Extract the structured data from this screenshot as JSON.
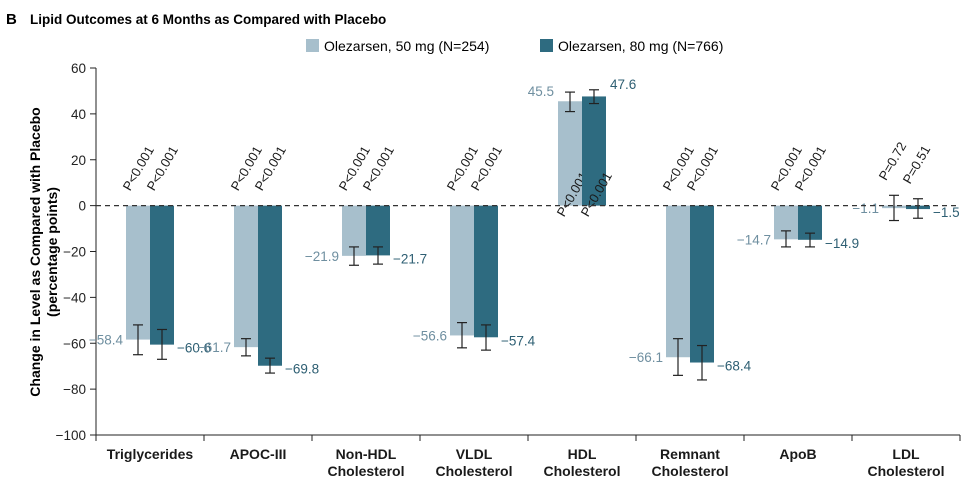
{
  "panel_letter": "B",
  "chart_data": {
    "type": "bar",
    "title": "Lipid Outcomes at 6 Months as Compared with Placebo",
    "ylabel_line1": "Change in Level as Compared with Placebo",
    "ylabel_line2": "(percentage points)",
    "xlabel": "",
    "ylim": [
      -100,
      60
    ],
    "yticks": [
      60,
      40,
      20,
      0,
      -20,
      -40,
      -60,
      -80,
      -100
    ],
    "ytick_labels": [
      "60",
      "40",
      "20",
      "0",
      "−20",
      "−40",
      "−60",
      "−80",
      "−100"
    ],
    "categories": [
      [
        "Triglycerides"
      ],
      [
        "APOC-III"
      ],
      [
        "Non-HDL",
        "Cholesterol"
      ],
      [
        "VLDL",
        "Cholesterol"
      ],
      [
        "HDL",
        "Cholesterol"
      ],
      [
        "Remnant",
        "Cholesterol"
      ],
      [
        "ApoB"
      ],
      [
        "LDL",
        "Cholesterol"
      ]
    ],
    "series": [
      {
        "name": "Olezarsen, 50 mg (N=254)",
        "color": "#a7bfcc",
        "label_color": "#6f8fa0",
        "values": [
          -58.4,
          -61.7,
          -21.9,
          -56.6,
          45.5,
          -66.1,
          -14.7,
          -1.1
        ],
        "value_labels": [
          "−58.4",
          "−61.7",
          "−21.9",
          "−56.6",
          "45.5",
          "−66.1",
          "−14.7",
          "−1.1"
        ],
        "ci": [
          [
            -65.0,
            -52.0
          ],
          [
            -65.5,
            -58.0
          ],
          [
            -26.0,
            -18.0
          ],
          [
            -62.0,
            -51.0
          ],
          [
            41.0,
            49.5
          ],
          [
            -74.0,
            -58.0
          ],
          [
            -18.0,
            -11.0
          ],
          [
            -6.5,
            4.5
          ]
        ],
        "p_values": [
          "P<0.001",
          "P<0.001",
          "P<0.001",
          "P<0.001",
          "P<0.001",
          "P<0.001",
          "P<0.001",
          "P=0.72"
        ]
      },
      {
        "name": "Olezarsen, 80 mg (N=766)",
        "color": "#2e6b80",
        "label_color": "#2e5f73",
        "values": [
          -60.6,
          -69.8,
          -21.7,
          -57.4,
          47.6,
          -68.4,
          -14.9,
          -1.5
        ],
        "value_labels": [
          "−60.6",
          "−69.8",
          "−21.7",
          "−57.4",
          "47.6",
          "−68.4",
          "−14.9",
          "−1.5"
        ],
        "ci": [
          [
            -67.0,
            -54.0
          ],
          [
            -73.0,
            -66.5
          ],
          [
            -25.5,
            -18.0
          ],
          [
            -63.0,
            -52.0
          ],
          [
            44.5,
            50.5
          ],
          [
            -76.0,
            -61.0
          ],
          [
            -18.0,
            -12.0
          ],
          [
            -5.5,
            3.0
          ]
        ],
        "p_values": [
          "P<0.001",
          "P<0.001",
          "P<0.001",
          "P<0.001",
          "P<0.001",
          "P<0.001",
          "P<0.001",
          "P=0.51"
        ]
      }
    ],
    "reference_line": 0
  }
}
